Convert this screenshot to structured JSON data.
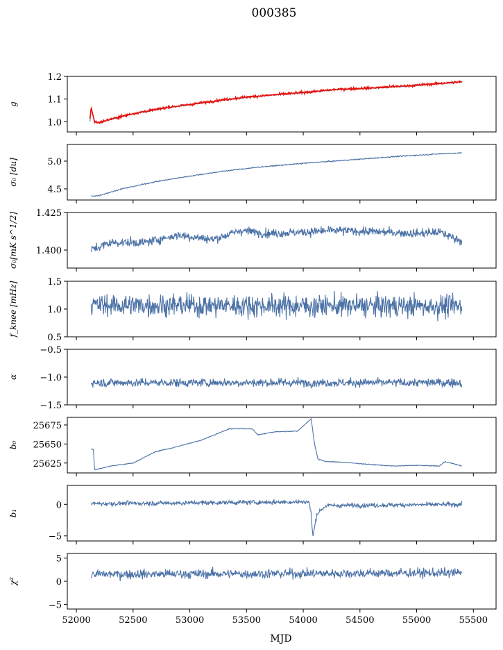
{
  "title": "000385",
  "xlabel": "MJD",
  "x_ticks": [
    52000,
    52500,
    53000,
    53500,
    54000,
    54500,
    55000,
    55500
  ],
  "x_range": [
    51920,
    55700
  ],
  "series_color": "#4c72a6",
  "fit_color": "#e8120c",
  "chart_data": [
    {
      "type": "line",
      "ylabel": "g",
      "ylim": [
        0.955,
        1.2
      ],
      "yticks": [
        1.0,
        1.1,
        1.2
      ],
      "ytick_labels": [
        "1.0",
        "1.1",
        "1.2"
      ],
      "x": [
        52120,
        52130,
        52160,
        52200,
        52300,
        52500,
        52800,
        53000,
        53250,
        53500,
        53800,
        54000,
        54300,
        54600,
        55000,
        55200,
        55400
      ],
      "series": [
        {
          "values": [
            1.0,
            1.06,
            0.998,
            0.995,
            1.01,
            1.035,
            1.062,
            1.075,
            1.093,
            1.108,
            1.12,
            1.128,
            1.142,
            1.148,
            1.16,
            1.168,
            1.175
          ],
          "noise": 0.002
        },
        {
          "values": [
            1.01,
            1.065,
            1.0,
            0.996,
            1.011,
            1.036,
            1.063,
            1.076,
            1.094,
            1.109,
            1.121,
            1.129,
            1.143,
            1.149,
            1.161,
            1.169,
            1.176
          ],
          "noise": 0.004,
          "color": "#e8120c"
        }
      ]
    },
    {
      "type": "line",
      "ylabel": "σ₀ [du]",
      "ylim": [
        4.3,
        5.3
      ],
      "yticks": [
        4.5,
        5.0
      ],
      "ytick_labels": [
        "4.5",
        "5.0"
      ],
      "x": [
        52130,
        52200,
        52400,
        52700,
        53000,
        53300,
        53600,
        54000,
        54400,
        54800,
        55200,
        55400
      ],
      "series": [
        {
          "values": [
            4.37,
            4.38,
            4.5,
            4.63,
            4.73,
            4.82,
            4.89,
            4.96,
            5.02,
            5.08,
            5.13,
            5.15
          ],
          "noise": 0.008
        }
      ]
    },
    {
      "type": "line",
      "ylabel": "σ₀[mK s^1/2]",
      "ylim": [
        1.388,
        1.425
      ],
      "yticks": [
        1.4,
        1.425
      ],
      "ytick_labels": [
        "1.400",
        "1.425"
      ],
      "x": [
        52130,
        52300,
        52600,
        52900,
        53200,
        53450,
        53700,
        54000,
        54300,
        54700,
        55000,
        55200,
        55400
      ],
      "series": [
        {
          "values": [
            1.4,
            1.405,
            1.405,
            1.41,
            1.407,
            1.413,
            1.411,
            1.412,
            1.413,
            1.412,
            1.411,
            1.412,
            1.406
          ],
          "noise": 0.0025
        }
      ]
    },
    {
      "type": "line",
      "ylabel": "f_knee [mHz]",
      "ylim": [
        0.5,
        1.5
      ],
      "yticks": [
        0.5,
        1.0,
        1.5
      ],
      "ytick_labels": [
        "0.5",
        "1.0",
        "1.5"
      ],
      "x": [
        52130,
        55400
      ],
      "series": [
        {
          "values": [
            1.07,
            1.05
          ],
          "noise": 0.17,
          "clip": true
        }
      ]
    },
    {
      "type": "line",
      "ylabel": "α",
      "ylim": [
        -1.5,
        -0.5
      ],
      "yticks": [
        -1.5,
        -1.0,
        -0.5
      ],
      "ytick_labels": [
        "−1.5",
        "−1.0",
        "−0.5"
      ],
      "x": [
        52130,
        55400
      ],
      "series": [
        {
          "values": [
            -1.1,
            -1.1
          ],
          "noise": 0.065
        }
      ]
    },
    {
      "type": "line",
      "ylabel": "b₀",
      "ylim": [
        25612,
        25685
      ],
      "yticks": [
        25625,
        25650,
        25675
      ],
      "ytick_labels": [
        "25625",
        "25650",
        "25675"
      ],
      "x": [
        52130,
        52150,
        52160,
        52300,
        52500,
        52700,
        52850,
        53100,
        53350,
        53550,
        53600,
        53750,
        53950,
        54070,
        54100,
        54130,
        54200,
        54350,
        54600,
        54800,
        55000,
        55200,
        55250,
        55300,
        55400
      ],
      "series": [
        {
          "values": [
            25643,
            25643,
            25616,
            25621,
            25625,
            25640,
            25645,
            25655,
            25670,
            25670,
            25662,
            25666,
            25667,
            25683,
            25650,
            25630,
            25627,
            25626,
            25623,
            25621,
            25622,
            25621,
            25627,
            25625,
            25621
          ],
          "noise": 0.4
        }
      ]
    },
    {
      "type": "line",
      "ylabel": "b₁",
      "ylim": [
        -5.8,
        3.0
      ],
      "yticks": [
        -5,
        0
      ],
      "ytick_labels": [
        "−5",
        "0"
      ],
      "x": [
        52130,
        54050,
        54070,
        54085,
        54120,
        54200,
        55400
      ],
      "series": [
        {
          "values": [
            0.1,
            0.4,
            -1.5,
            -5.2,
            -1.5,
            -0.2,
            0.0
          ],
          "noise": 0.3
        }
      ]
    },
    {
      "type": "line",
      "ylabel": "χ²",
      "ylim": [
        -6,
        6
      ],
      "yticks": [
        -5,
        0,
        5
      ],
      "ytick_labels": [
        "−5",
        "0",
        "5"
      ],
      "x": [
        52130,
        55400
      ],
      "series": [
        {
          "values": [
            1.5,
            1.8
          ],
          "noise": 0.85
        }
      ]
    }
  ]
}
